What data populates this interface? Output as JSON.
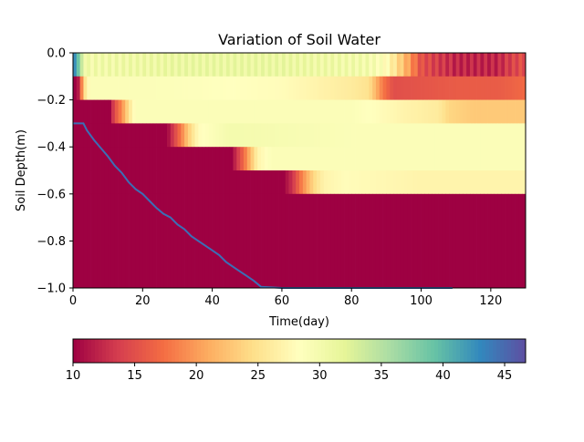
{
  "chart_data": {
    "type": "heatmap",
    "title": "Variation of Soil Water",
    "xlabel": "Time(day)",
    "ylabel": "Soil Depth(m)",
    "xlim": [
      0,
      130
    ],
    "ylim": [
      -1.0,
      0.0
    ],
    "x_ticks": [
      0,
      20,
      40,
      60,
      80,
      100,
      120
    ],
    "y_ticks": [
      0.0,
      -0.2,
      -0.4,
      -0.6,
      -0.8,
      -1.0
    ],
    "y_tick_labels": [
      "0.0",
      "−0.2",
      "−0.4",
      "−0.6",
      "−0.8",
      "−1.0"
    ],
    "layer_boundaries_m": [
      0.0,
      -0.1,
      -0.2,
      -0.3,
      -0.4,
      -0.5,
      -0.6,
      -1.0
    ],
    "background_value": 10,
    "layer_profiles": [
      {
        "top": 0.0,
        "bottom": -0.1,
        "points": [
          [
            0,
            45
          ],
          [
            1,
            40
          ],
          [
            2,
            38
          ],
          [
            3,
            30
          ],
          [
            30,
            31
          ],
          [
            60,
            31
          ],
          [
            85,
            30
          ],
          [
            90,
            28
          ],
          [
            95,
            22
          ],
          [
            100,
            15
          ],
          [
            110,
            12
          ],
          [
            122,
            12
          ],
          [
            126,
            14
          ],
          [
            130,
            15
          ]
        ]
      },
      {
        "top": -0.1,
        "bottom": -0.2,
        "points": [
          [
            0,
            10
          ],
          [
            1,
            10
          ],
          [
            2,
            13
          ],
          [
            3,
            24
          ],
          [
            5,
            29
          ],
          [
            20,
            29
          ],
          [
            60,
            28
          ],
          [
            70,
            27
          ],
          [
            80,
            26
          ],
          [
            85,
            25
          ],
          [
            89,
            18
          ],
          [
            92,
            15
          ],
          [
            110,
            16
          ],
          [
            122,
            16
          ],
          [
            130,
            17
          ]
        ]
      },
      {
        "top": -0.2,
        "bottom": -0.3,
        "points": [
          [
            0,
            10
          ],
          [
            10.5,
            10
          ],
          [
            12,
            15
          ],
          [
            14,
            19
          ],
          [
            16,
            25
          ],
          [
            18,
            29
          ],
          [
            50,
            29
          ],
          [
            80,
            29
          ],
          [
            88,
            28
          ],
          [
            95,
            27
          ],
          [
            105,
            26
          ],
          [
            108,
            24
          ],
          [
            115,
            23
          ],
          [
            130,
            23
          ]
        ]
      },
      {
        "top": -0.3,
        "bottom": -0.4,
        "points": [
          [
            0,
            10
          ],
          [
            27,
            10
          ],
          [
            29,
            14
          ],
          [
            31,
            18
          ],
          [
            33,
            23
          ],
          [
            36,
            28
          ],
          [
            45,
            30
          ],
          [
            80,
            29
          ],
          [
            110,
            29
          ],
          [
            130,
            29
          ]
        ]
      },
      {
        "top": -0.4,
        "bottom": -0.5,
        "points": [
          [
            0,
            10
          ],
          [
            45.5,
            10
          ],
          [
            47,
            13
          ],
          [
            49,
            17
          ],
          [
            51,
            22
          ],
          [
            53,
            27
          ],
          [
            57,
            29
          ],
          [
            80,
            29
          ],
          [
            130,
            29
          ]
        ]
      },
      {
        "top": -0.5,
        "bottom": -0.6,
        "points": [
          [
            0,
            10
          ],
          [
            60.5,
            10
          ],
          [
            63,
            13
          ],
          [
            66,
            19
          ],
          [
            69,
            24
          ],
          [
            72,
            27
          ],
          [
            78,
            28
          ],
          [
            100,
            27
          ],
          [
            130,
            27
          ]
        ]
      },
      {
        "top": -0.6,
        "bottom": -1.0,
        "points": [
          [
            0,
            10
          ],
          [
            130,
            10
          ]
        ]
      }
    ],
    "wetting_front_line": {
      "color": "#3b6fb6",
      "x": [
        0,
        3,
        4,
        6,
        8,
        10,
        12,
        14,
        16,
        18,
        20,
        22,
        24,
        26,
        28,
        30,
        32,
        34,
        36,
        38,
        40,
        42,
        44,
        46,
        48,
        50,
        52,
        54,
        60,
        80,
        100,
        109
      ],
      "y": [
        -0.3,
        -0.3,
        -0.33,
        -0.37,
        -0.405,
        -0.44,
        -0.48,
        -0.51,
        -0.55,
        -0.58,
        -0.6,
        -0.63,
        -0.66,
        -0.685,
        -0.7,
        -0.73,
        -0.75,
        -0.78,
        -0.8,
        -0.82,
        -0.84,
        -0.86,
        -0.89,
        -0.91,
        -0.93,
        -0.95,
        -0.97,
        -0.995,
        -1.0,
        -1.0,
        -1.0,
        -1.0
      ]
    },
    "colorbar": {
      "vmin": 10,
      "vmax": 46.7,
      "ticks": [
        10,
        15,
        20,
        25,
        30,
        35,
        40,
        45
      ],
      "colormap": "Spectral",
      "orientation": "horizontal"
    }
  }
}
